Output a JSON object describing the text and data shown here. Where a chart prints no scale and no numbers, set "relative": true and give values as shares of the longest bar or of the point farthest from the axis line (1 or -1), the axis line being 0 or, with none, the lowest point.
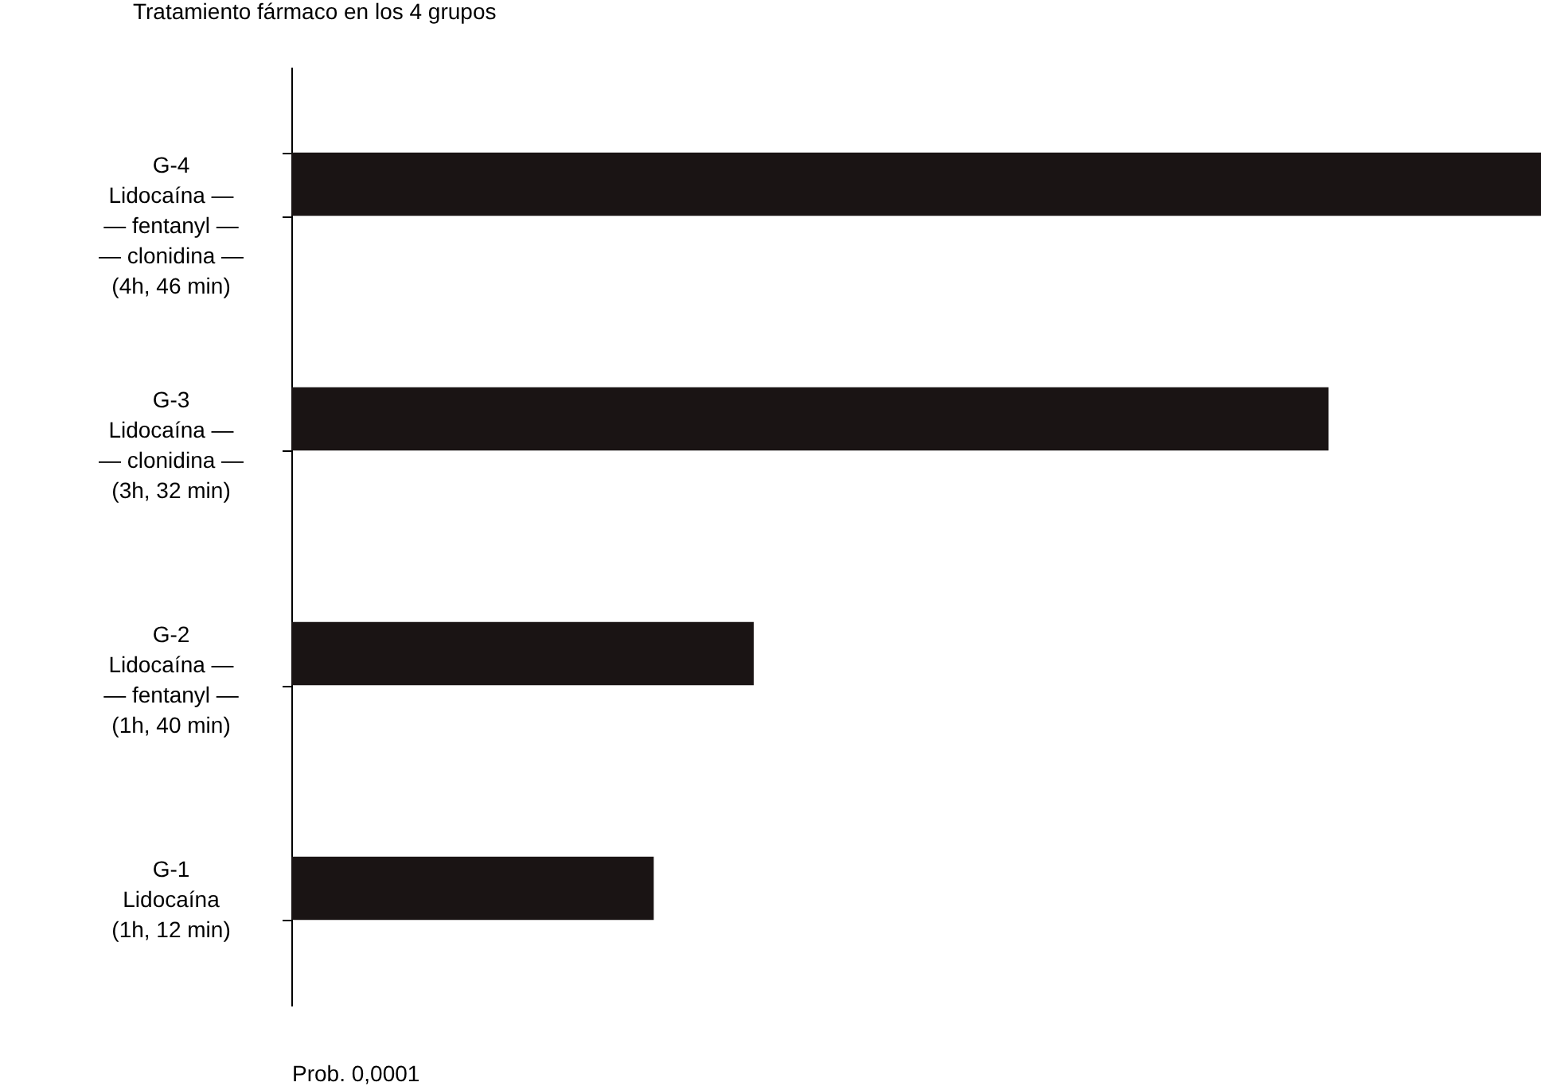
{
  "chart_data": {
    "type": "bar",
    "orientation": "horizontal",
    "relative": true,
    "title": "Tratamiento fármaco en los 4 grupos",
    "categories": [
      "G-4\nLidocaína —\n— fentanyl —\n— clonidina —\n(4h, 46 min)",
      "G-3\nLidocaína —\n— clonidina —\n(3h, 32 min)",
      "G-2\nLidocaína —\n— fentanyl —\n(1h, 40 min)",
      "G-1\nLidocaína\n(1h, 12 min)"
    ],
    "values": [
      1,
      0.83,
      0.37,
      0.29
    ],
    "color": "#1a1414",
    "grid": false,
    "annotations": [
      "Prob. 0,0001"
    ]
  }
}
